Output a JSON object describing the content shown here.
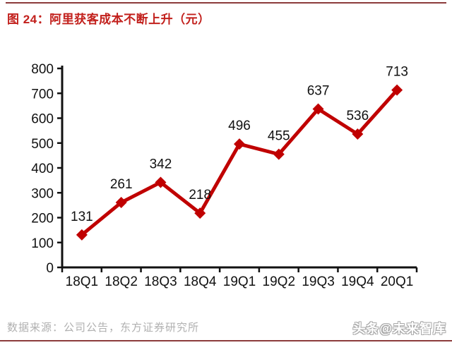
{
  "page": {
    "title": "图 24：阿里获客成本不断上升（元）"
  },
  "chart_data": {
    "type": "line",
    "title": "图 24：阿里获客成本不断上升（元）",
    "categories": [
      "18Q1",
      "18Q2",
      "18Q3",
      "18Q4",
      "19Q1",
      "19Q2",
      "19Q3",
      "19Q4",
      "20Q1"
    ],
    "values": [
      131,
      261,
      342,
      218,
      496,
      455,
      637,
      536,
      713
    ],
    "xlabel": "",
    "ylabel": "",
    "ylim": [
      0,
      800
    ],
    "ytick_step": 100,
    "grid": false,
    "legend": "none",
    "marker": "diamond",
    "data_labels": true,
    "line_color": "#c00000",
    "axis_color": "#111111"
  },
  "footer": {
    "source": "数据来源：公司公告，东方证券研究所",
    "watermark": "头条@未来智库"
  },
  "colors": {
    "title_red": "#c2201c",
    "series_red": "#c00000",
    "rule_maroon": "#8c3b3b",
    "footer_gray": "#b0b0b0"
  }
}
